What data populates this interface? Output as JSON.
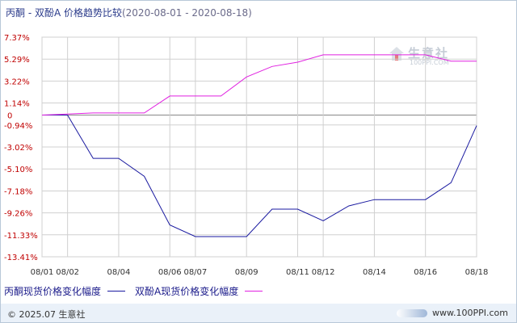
{
  "title": {
    "text": "丙酮 - 双酚A 价格趋势比较",
    "range": "(2020-08-01 - 2020-08-18)"
  },
  "watermark": {
    "cn": "生意社",
    "en": "100PPI.COM"
  },
  "footer": {
    "copyright": "© 2025.07 生意社",
    "site": "www.100PPI.com"
  },
  "colors": {
    "series1": "#1a1aa0",
    "series2": "#e020e0",
    "grid": "#d0d0d0",
    "zero": "#888888"
  },
  "chart_data": {
    "type": "line",
    "x": [
      "08/01",
      "08/02",
      "08/03",
      "08/04",
      "08/05",
      "08/06",
      "08/07",
      "08/08",
      "08/09",
      "08/10",
      "08/11",
      "08/12",
      "08/13",
      "08/14",
      "08/15",
      "08/16",
      "08/17",
      "08/18"
    ],
    "xtick_labels": [
      "08/01",
      "08/02",
      "08/04",
      "08/06",
      "08/07",
      "08/09",
      "08/11",
      "08/12",
      "08/14",
      "08/16",
      "08/18"
    ],
    "ytick_labels": [
      "7.37%",
      "5.29%",
      "3.22%",
      "1.14%",
      "0",
      "-0.94%",
      "-3.02%",
      "-5.10%",
      "-7.18%",
      "-9.26%",
      "-11.33%",
      "-13.41%"
    ],
    "yticks": [
      7.37,
      5.29,
      3.22,
      1.14,
      0,
      -0.94,
      -3.02,
      -5.1,
      -7.18,
      -9.26,
      -11.33,
      -13.41
    ],
    "ylim": [
      -13.41,
      7.37
    ],
    "series": [
      {
        "name": "丙酮现货价格变化幅度",
        "values": [
          0,
          0,
          -4.1,
          -4.1,
          -5.8,
          -10.4,
          -11.5,
          -11.5,
          -11.5,
          -8.9,
          -8.9,
          -10.0,
          -8.6,
          -8.0,
          -8.0,
          -8.0,
          -6.4,
          -1.0
        ]
      },
      {
        "name": "双酚A现货价格变化幅度",
        "values": [
          0,
          0.1,
          0.2,
          0.2,
          0.2,
          1.8,
          1.8,
          1.8,
          3.6,
          4.6,
          5.0,
          5.7,
          5.7,
          5.7,
          5.7,
          5.7,
          5.1,
          5.1
        ]
      }
    ],
    "grid": true,
    "legend_position": "bottom-left"
  }
}
